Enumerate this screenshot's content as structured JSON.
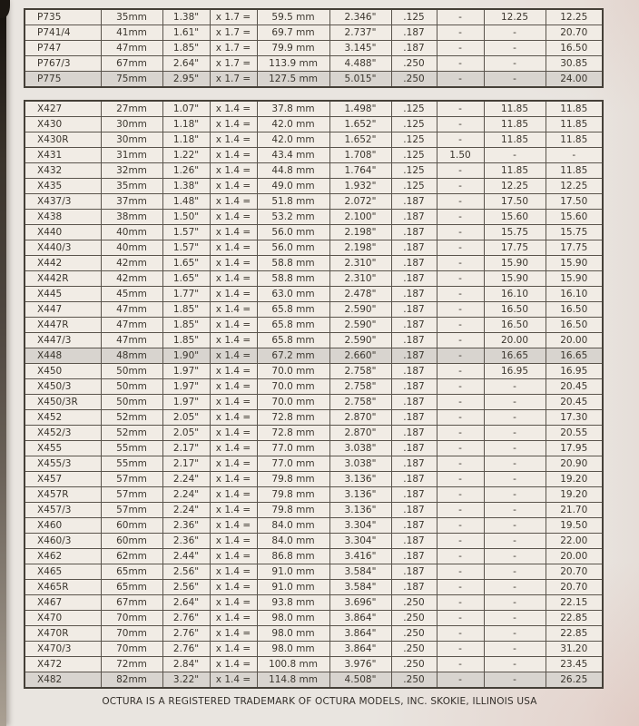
{
  "footer": {
    "text": "OCTURA IS A REGISTERED TRADEMARK OF OCTURA MODELS, INC.  SKOKIE, ILLINOIS  USA"
  },
  "colors": {
    "paper": "#e9e5e0",
    "cell_background": "#f1ece5",
    "shaded_row": "#d8d4cf",
    "grid_line": "#5a544c",
    "text": "#3b362e",
    "binding_edge": "#3a332b"
  },
  "tables": [
    {
      "name": "p-series",
      "rows": [
        {
          "shaded": false,
          "cells": [
            "P735",
            "35mm",
            "1.38\"",
            "x 1.7 =",
            "59.5 mm",
            "2.346\"",
            ".125",
            "-",
            "12.25",
            "12.25"
          ]
        },
        {
          "shaded": false,
          "cells": [
            "P741/4",
            "41mm",
            "1.61\"",
            "x 1.7 =",
            "69.7 mm",
            "2.737\"",
            ".187",
            "-",
            "-",
            "20.70"
          ]
        },
        {
          "shaded": false,
          "cells": [
            "P747",
            "47mm",
            "1.85\"",
            "x 1.7 =",
            "79.9 mm",
            "3.145\"",
            ".187",
            "-",
            "-",
            "16.50"
          ]
        },
        {
          "shaded": false,
          "cells": [
            "P767/3",
            "67mm",
            "2.64\"",
            "x 1.7 =",
            "113.9 mm",
            "4.488\"",
            ".250",
            "-",
            "-",
            "30.85"
          ]
        },
        {
          "shaded": true,
          "cells": [
            "P775",
            "75mm",
            "2.95\"",
            "x 1.7 =",
            "127.5 mm",
            "5.015\"",
            ".250",
            "-",
            "-",
            "24.00"
          ]
        }
      ]
    },
    {
      "name": "x-series",
      "rows": [
        {
          "shaded": false,
          "cells": [
            "X427",
            "27mm",
            "1.07\"",
            "x 1.4 =",
            "37.8 mm",
            "1.498\"",
            ".125",
            "-",
            "11.85",
            "11.85"
          ]
        },
        {
          "shaded": false,
          "cells": [
            "X430",
            "30mm",
            "1.18\"",
            "x 1.4 =",
            "42.0 mm",
            "1.652\"",
            ".125",
            "-",
            "11.85",
            "11.85"
          ]
        },
        {
          "shaded": false,
          "cells": [
            "X430R",
            "30mm",
            "1.18\"",
            "x 1.4 =",
            "42.0 mm",
            "1.652\"",
            ".125",
            "-",
            "11.85",
            "11.85"
          ]
        },
        {
          "shaded": false,
          "cells": [
            "X431",
            "31mm",
            "1.22\"",
            "x 1.4 =",
            "43.4 mm",
            "1.708\"",
            ".125",
            "1.50",
            "-",
            "-"
          ]
        },
        {
          "shaded": false,
          "cells": [
            "X432",
            "32mm",
            "1.26\"",
            "x 1.4 =",
            "44.8 mm",
            "1.764\"",
            ".125",
            "-",
            "11.85",
            "11.85"
          ]
        },
        {
          "shaded": false,
          "cells": [
            "X435",
            "35mm",
            "1.38\"",
            "x 1.4 =",
            "49.0 mm",
            "1.932\"",
            ".125",
            "-",
            "12.25",
            "12.25"
          ]
        },
        {
          "shaded": false,
          "cells": [
            "X437/3",
            "37mm",
            "1.48\"",
            "x 1.4 =",
            "51.8 mm",
            "2.072\"",
            ".187",
            "-",
            "17.50",
            "17.50"
          ]
        },
        {
          "shaded": false,
          "cells": [
            "X438",
            "38mm",
            "1.50\"",
            "x 1.4 =",
            "53.2 mm",
            "2.100\"",
            ".187",
            "-",
            "15.60",
            "15.60"
          ]
        },
        {
          "shaded": false,
          "cells": [
            "X440",
            "40mm",
            "1.57\"",
            "x 1.4 =",
            "56.0 mm",
            "2.198\"",
            ".187",
            "-",
            "15.75",
            "15.75"
          ]
        },
        {
          "shaded": false,
          "cells": [
            "X440/3",
            "40mm",
            "1.57\"",
            "x 1.4 =",
            "56.0 mm",
            "2.198\"",
            ".187",
            "-",
            "17.75",
            "17.75"
          ]
        },
        {
          "shaded": false,
          "cells": [
            "X442",
            "42mm",
            "1.65\"",
            "x 1.4 =",
            "58.8 mm",
            "2.310\"",
            ".187",
            "-",
            "15.90",
            "15.90"
          ]
        },
        {
          "shaded": false,
          "cells": [
            "X442R",
            "42mm",
            "1.65\"",
            "x 1.4 =",
            "58.8 mm",
            "2.310\"",
            ".187",
            "-",
            "15.90",
            "15.90"
          ]
        },
        {
          "shaded": false,
          "cells": [
            "X445",
            "45mm",
            "1.77\"",
            "x 1.4 =",
            "63.0 mm",
            "2.478\"",
            ".187",
            "-",
            "16.10",
            "16.10"
          ]
        },
        {
          "shaded": false,
          "cells": [
            "X447",
            "47mm",
            "1.85\"",
            "x 1.4 =",
            "65.8 mm",
            "2.590\"",
            ".187",
            "-",
            "16.50",
            "16.50"
          ]
        },
        {
          "shaded": false,
          "cells": [
            "X447R",
            "47mm",
            "1.85\"",
            "x 1.4 =",
            "65.8 mm",
            "2.590\"",
            ".187",
            "-",
            "16.50",
            "16.50"
          ]
        },
        {
          "shaded": false,
          "cells": [
            "X447/3",
            "47mm",
            "1.85\"",
            "x 1.4 =",
            "65.8 mm",
            "2.590\"",
            ".187",
            "-",
            "20.00",
            "20.00"
          ]
        },
        {
          "shaded": true,
          "cells": [
            "X448",
            "48mm",
            "1.90\"",
            "x 1.4 =",
            "67.2 mm",
            "2.660\"",
            ".187",
            "-",
            "16.65",
            "16.65"
          ]
        },
        {
          "shaded": false,
          "cells": [
            "X450",
            "50mm",
            "1.97\"",
            "x 1.4 =",
            "70.0 mm",
            "2.758\"",
            ".187",
            "-",
            "16.95",
            "16.95"
          ]
        },
        {
          "shaded": false,
          "cells": [
            "X450/3",
            "50mm",
            "1.97\"",
            "x 1.4 =",
            "70.0 mm",
            "2.758\"",
            ".187",
            "-",
            "-",
            "20.45"
          ]
        },
        {
          "shaded": false,
          "cells": [
            "X450/3R",
            "50mm",
            "1.97\"",
            "x 1.4 =",
            "70.0 mm",
            "2.758\"",
            ".187",
            "-",
            "-",
            "20.45"
          ]
        },
        {
          "shaded": false,
          "cells": [
            "X452",
            "52mm",
            "2.05\"",
            "x 1.4 =",
            "72.8 mm",
            "2.870\"",
            ".187",
            "-",
            "-",
            "17.30"
          ]
        },
        {
          "shaded": false,
          "cells": [
            "X452/3",
            "52mm",
            "2.05\"",
            "x 1.4 =",
            "72.8 mm",
            "2.870\"",
            ".187",
            "-",
            "-",
            "20.55"
          ]
        },
        {
          "shaded": false,
          "cells": [
            "X455",
            "55mm",
            "2.17\"",
            "x 1.4 =",
            "77.0 mm",
            "3.038\"",
            ".187",
            "-",
            "-",
            "17.95"
          ]
        },
        {
          "shaded": false,
          "cells": [
            "X455/3",
            "55mm",
            "2.17\"",
            "x 1.4 =",
            "77.0 mm",
            "3.038\"",
            ".187",
            "-",
            "-",
            "20.90"
          ]
        },
        {
          "shaded": false,
          "cells": [
            "X457",
            "57mm",
            "2.24\"",
            "x 1.4 =",
            "79.8 mm",
            "3.136\"",
            ".187",
            "-",
            "-",
            "19.20"
          ]
        },
        {
          "shaded": false,
          "cells": [
            "X457R",
            "57mm",
            "2.24\"",
            "x 1.4 =",
            "79.8 mm",
            "3.136\"",
            ".187",
            "-",
            "-",
            "19.20"
          ]
        },
        {
          "shaded": false,
          "cells": [
            "X457/3",
            "57mm",
            "2.24\"",
            "x 1.4 =",
            "79.8 mm",
            "3.136\"",
            ".187",
            "-",
            "-",
            "21.70"
          ]
        },
        {
          "shaded": false,
          "cells": [
            "X460",
            "60mm",
            "2.36\"",
            "x 1.4 =",
            "84.0 mm",
            "3.304\"",
            ".187",
            "-",
            "-",
            "19.50"
          ]
        },
        {
          "shaded": false,
          "cells": [
            "X460/3",
            "60mm",
            "2.36\"",
            "x 1.4 =",
            "84.0 mm",
            "3.304\"",
            ".187",
            "-",
            "-",
            "22.00"
          ]
        },
        {
          "shaded": false,
          "cells": [
            "X462",
            "62mm",
            "2.44\"",
            "x 1.4 =",
            "86.8 mm",
            "3.416\"",
            ".187",
            "-",
            "-",
            "20.00"
          ]
        },
        {
          "shaded": false,
          "cells": [
            "X465",
            "65mm",
            "2.56\"",
            "x 1.4 =",
            "91.0 mm",
            "3.584\"",
            ".187",
            "-",
            "-",
            "20.70"
          ]
        },
        {
          "shaded": false,
          "cells": [
            "X465R",
            "65mm",
            "2.56\"",
            "x 1.4 =",
            "91.0 mm",
            "3.584\"",
            ".187",
            "-",
            "-",
            "20.70"
          ]
        },
        {
          "shaded": false,
          "cells": [
            "X467",
            "67mm",
            "2.64\"",
            "x 1.4 =",
            "93.8 mm",
            "3.696\"",
            ".250",
            "-",
            "-",
            "22.15"
          ]
        },
        {
          "shaded": false,
          "cells": [
            "X470",
            "70mm",
            "2.76\"",
            "x 1.4 =",
            "98.0 mm",
            "3.864\"",
            ".250",
            "-",
            "-",
            "22.85"
          ]
        },
        {
          "shaded": false,
          "cells": [
            "X470R",
            "70mm",
            "2.76\"",
            "x 1.4 =",
            "98.0 mm",
            "3.864\"",
            ".250",
            "-",
            "-",
            "22.85"
          ]
        },
        {
          "shaded": false,
          "cells": [
            "X470/3",
            "70mm",
            "2.76\"",
            "x 1.4 =",
            "98.0 mm",
            "3.864\"",
            ".250",
            "-",
            "-",
            "31.20"
          ]
        },
        {
          "shaded": false,
          "cells": [
            "X472",
            "72mm",
            "2.84\"",
            "x 1.4 =",
            "100.8 mm",
            "3.976\"",
            ".250",
            "-",
            "-",
            "23.45"
          ]
        },
        {
          "shaded": true,
          "cells": [
            "X482",
            "82mm",
            "3.22\"",
            "x 1.4 =",
            "114.8 mm",
            "4.508\"",
            ".250",
            "-",
            "-",
            "26.25"
          ]
        }
      ]
    }
  ]
}
